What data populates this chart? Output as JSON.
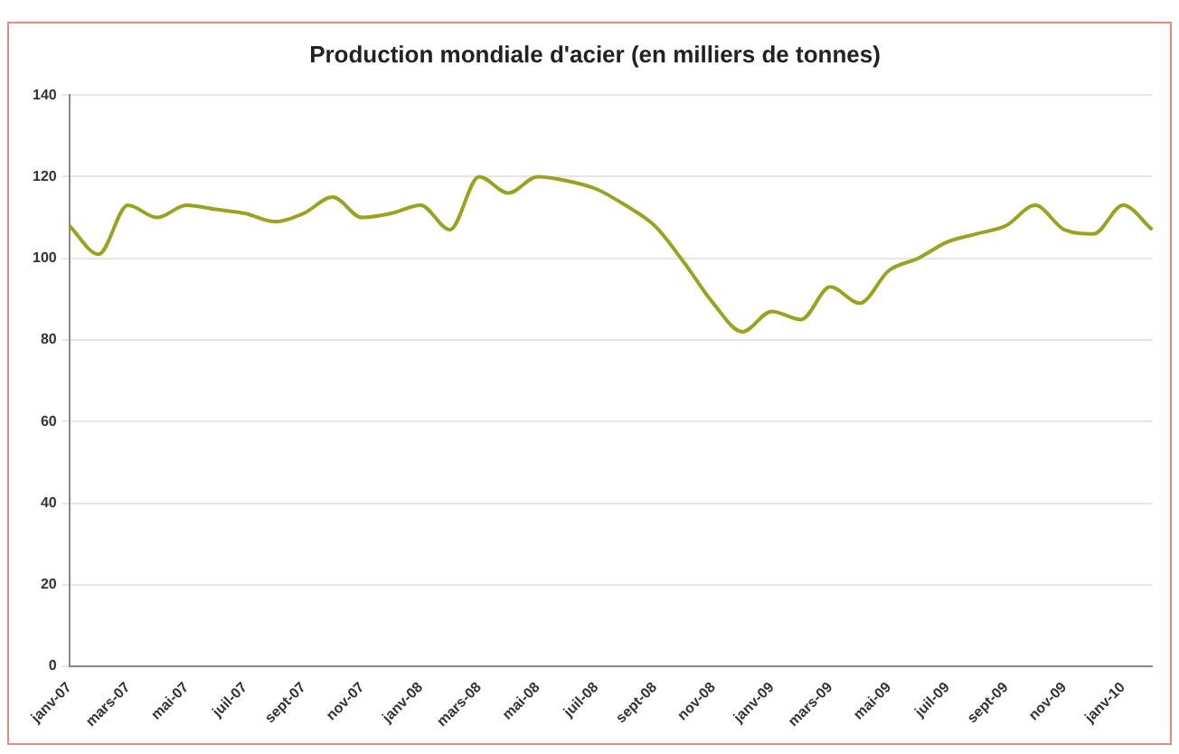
{
  "chart_data": {
    "type": "line",
    "title": "Production mondiale d'acier (en milliers de tonnes)",
    "categories": [
      "janv-07",
      null,
      "mars-07",
      null,
      "mai-07",
      null,
      "juil-07",
      null,
      "sept-07",
      null,
      "nov-07",
      null,
      "janv-08",
      null,
      "mars-08",
      null,
      "mai-08",
      null,
      "juil-08",
      null,
      "sept-08",
      null,
      "nov-08",
      null,
      "janv-09",
      null,
      "mars-09",
      null,
      "mai-09",
      null,
      "juil-09",
      null,
      "sept-09",
      null,
      "nov-09",
      null,
      "janv-10",
      null
    ],
    "series": [
      {
        "color": "#9aa31f",
        "values": [
          108,
          101,
          113,
          110,
          113,
          112,
          111,
          109,
          111,
          115,
          110,
          111,
          113,
          107,
          120,
          116,
          120,
          119,
          117,
          113,
          108,
          99,
          89,
          82,
          87,
          85,
          93,
          89,
          97,
          100,
          104,
          106,
          108,
          113,
          107,
          106,
          113,
          107
        ]
      }
    ],
    "ylim": [
      0,
      140
    ],
    "yticks": [
      0,
      20,
      40,
      60,
      80,
      100,
      120,
      140
    ],
    "grid": "y",
    "legend": false,
    "marker": "none",
    "line_style": "solid"
  }
}
